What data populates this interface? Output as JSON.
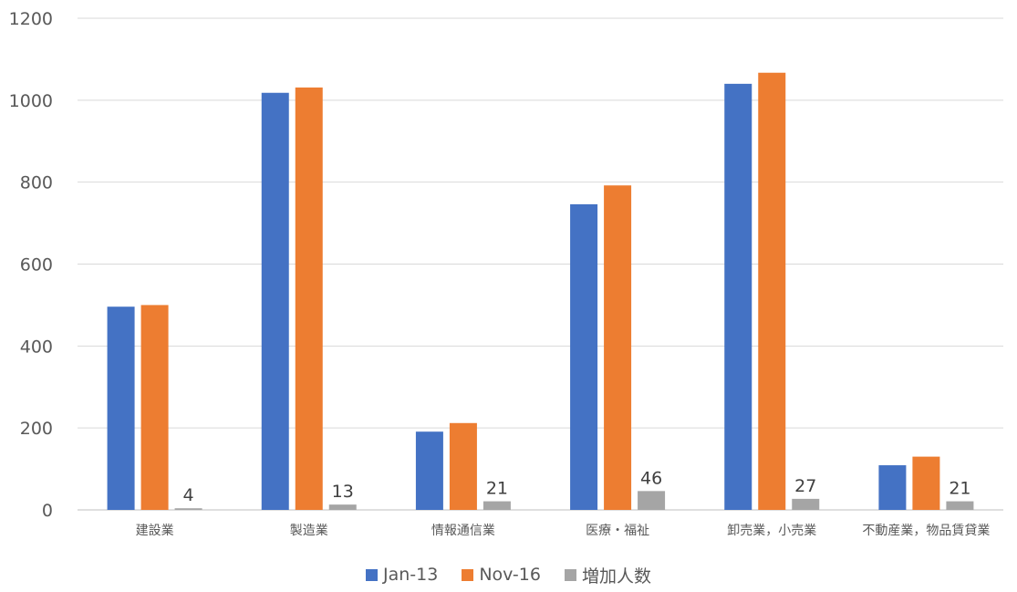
{
  "chart_data": {
    "type": "bar",
    "title": "",
    "xlabel": "",
    "ylabel": "",
    "ylim": [
      0,
      1200
    ],
    "yticks": [
      0,
      200,
      400,
      600,
      800,
      1000,
      1200
    ],
    "grid": true,
    "legend_position": "bottom",
    "categories": [
      "建設業",
      "製造業",
      "情報通信業",
      "医療・福祉",
      "卸売業，小売業",
      "不動産業，物品賃貸業"
    ],
    "series": [
      {
        "name": "Jan-13",
        "color": "#4472C4",
        "values": [
          496,
          1018,
          191,
          746,
          1040,
          109
        ]
      },
      {
        "name": "Nov-16",
        "color": "#ED7D31",
        "values": [
          500,
          1031,
          212,
          792,
          1067,
          130
        ]
      },
      {
        "name": "増加人数",
        "color": "#A5A5A5",
        "values": [
          4,
          13,
          21,
          46,
          27,
          21
        ],
        "data_labels": [
          "4",
          "13",
          "21",
          "46",
          "27",
          "21"
        ]
      }
    ]
  }
}
